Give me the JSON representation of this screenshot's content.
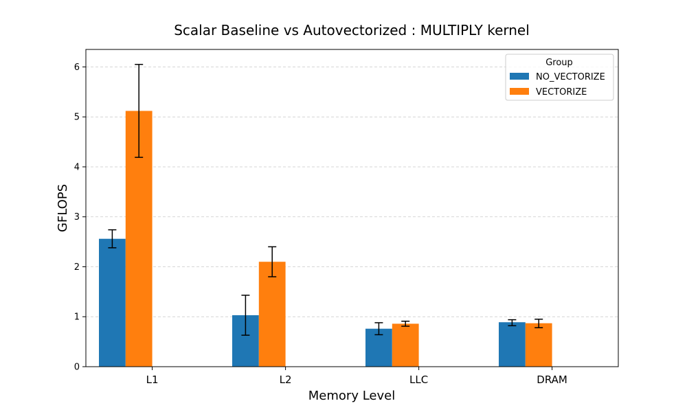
{
  "chart_data": {
    "type": "bar",
    "title": "Scalar Baseline vs Autovectorized : MULTIPLY kernel",
    "xlabel": "Memory Level",
    "ylabel": "GFLOPS",
    "categories": [
      "L1",
      "L2",
      "LLC",
      "DRAM"
    ],
    "ylim": [
      0,
      6.35
    ],
    "yticks": [
      0,
      1,
      2,
      3,
      4,
      5,
      6
    ],
    "grid": "y-dashed",
    "legend": {
      "title": "Group",
      "placement": "top-right"
    },
    "series": [
      {
        "name": "NO_VECTORIZE",
        "color": "#1f77b4",
        "values": [
          2.56,
          1.03,
          0.76,
          0.89
        ],
        "error": [
          [
            2.38,
            2.74
          ],
          [
            0.63,
            1.43
          ],
          [
            0.64,
            0.88
          ],
          [
            0.82,
            0.94
          ]
        ]
      },
      {
        "name": "VECTORIZE",
        "color": "#ff7f0e",
        "values": [
          5.12,
          2.1,
          0.86,
          0.87
        ],
        "error": [
          [
            4.19,
            6.05
          ],
          [
            1.8,
            2.4
          ],
          [
            0.81,
            0.91
          ],
          [
            0.78,
            0.95
          ]
        ]
      }
    ]
  }
}
